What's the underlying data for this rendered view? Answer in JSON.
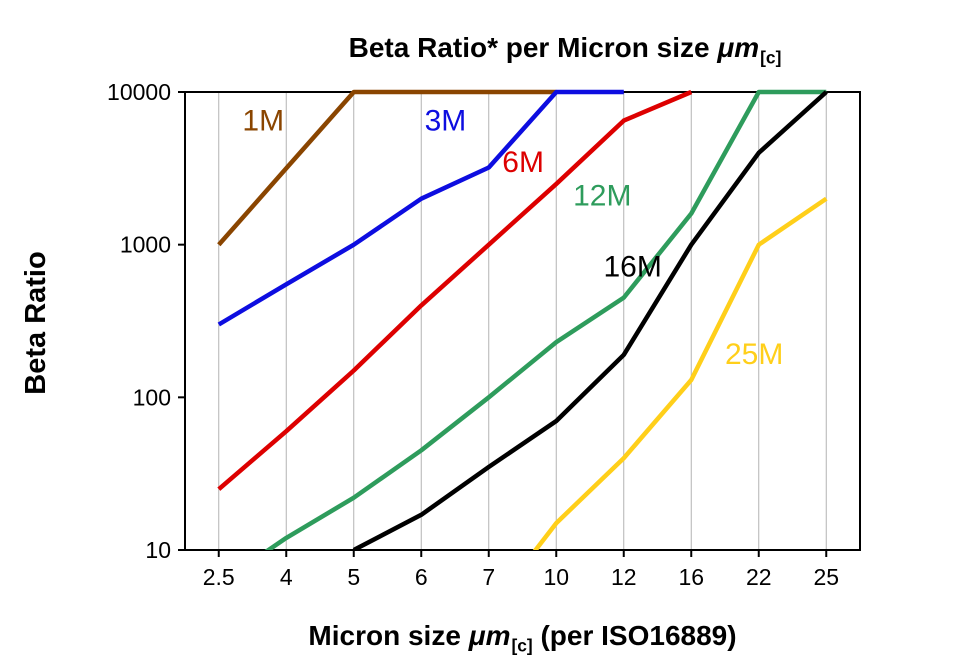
{
  "chart": {
    "title": {
      "main": "Beta Ratio* per Micron size ",
      "unit": "μm",
      "unit_sub": "[c]"
    },
    "x_axis": {
      "label_pre": "Micron size ",
      "unit": "μm",
      "unit_sub": "[c]",
      "label_post": " (per ISO16889)"
    },
    "y_axis": {
      "label": "Beta Ratio"
    }
  },
  "chart_data": {
    "type": "line",
    "title": "Beta Ratio* per Micron size μm[c]",
    "xlabel": "Micron size μm[c] (per ISO16889)",
    "ylabel": "Beta Ratio",
    "x_categories": [
      "2.5",
      "4",
      "5",
      "6",
      "7",
      "10",
      "12",
      "16",
      "22",
      "25"
    ],
    "y_scale": "log",
    "ylim": [
      10,
      10000
    ],
    "y_ticks": [
      "10",
      "100",
      "1000",
      "10000"
    ],
    "grid": "vertical-only",
    "grid_color": "#b3b3b3",
    "legend": "inline-colored-labels",
    "series": [
      {
        "name": "1M",
        "color": "#8a4500",
        "values": [
          1000,
          3162,
          10000,
          10000,
          10000,
          10000,
          null,
          null,
          null,
          null
        ],
        "label": {
          "x": 0.35,
          "y": 5600
        }
      },
      {
        "name": "3M",
        "color": "#0d0de0",
        "values": [
          300,
          550,
          1000,
          2000,
          3200,
          10000,
          10000,
          null,
          null,
          null
        ],
        "label": {
          "x": 3.05,
          "y": 5600
        }
      },
      {
        "name": "6M",
        "color": "#dd0000",
        "values": [
          25,
          60,
          150,
          400,
          1000,
          2500,
          6500,
          10000,
          null,
          null
        ],
        "label": {
          "x": 4.2,
          "y": 3000
        }
      },
      {
        "name": "12M",
        "color": "#2e9c5c",
        "values": [
          6,
          12,
          22,
          45,
          100,
          230,
          450,
          1600,
          10000,
          10000
        ],
        "label": {
          "x": 5.25,
          "y": 1800
        }
      },
      {
        "name": "16M",
        "color": "#000000",
        "values": [
          null,
          null,
          10,
          17,
          35,
          70,
          190,
          1000,
          4000,
          10000
        ],
        "label": {
          "x": 5.7,
          "y": 620
        }
      },
      {
        "name": "25M",
        "color": "#ffcf1a",
        "values": [
          null,
          null,
          null,
          null,
          4,
          15,
          40,
          130,
          1000,
          2000
        ],
        "label": {
          "x": 7.5,
          "y": 165
        }
      }
    ]
  }
}
